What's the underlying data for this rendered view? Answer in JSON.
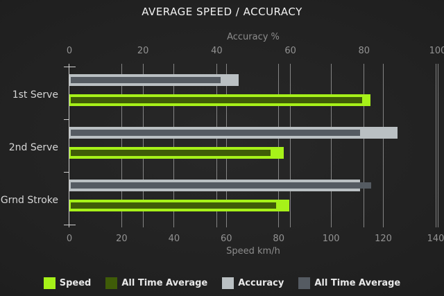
{
  "title": "AVERAGE SPEED / ACCURACY",
  "chart_data": {
    "type": "bar",
    "orientation": "horizontal",
    "title": "AVERAGE SPEED / ACCURACY",
    "categories": [
      "1st Serve",
      "2nd Serve",
      "Grnd Stroke"
    ],
    "axes": {
      "top": {
        "label": "Accuracy %",
        "ticks": [
          0,
          20,
          40,
          60,
          80,
          100
        ],
        "range": [
          0,
          100
        ]
      },
      "bottom": {
        "label": "Speed km/h",
        "ticks": [
          0,
          20,
          40,
          60,
          80,
          100,
          120,
          140
        ],
        "range": [
          0,
          140
        ]
      }
    },
    "series": [
      {
        "name": "Speed",
        "axis": "bottom",
        "color": "#a6f119",
        "role": "outer",
        "values": [
          115,
          82,
          84
        ]
      },
      {
        "name": "All Time Average",
        "axis": "bottom",
        "color": "#3f5c08",
        "role": "inner",
        "values": [
          112,
          77,
          79
        ]
      },
      {
        "name": "Accuracy",
        "axis": "top",
        "color": "#bac0c3",
        "role": "outer",
        "values": [
          46,
          89,
          79
        ]
      },
      {
        "name": "All Time Average",
        "axis": "top",
        "color": "#555b62",
        "role": "inner",
        "values": [
          41,
          79,
          82
        ]
      }
    ],
    "legend": [
      {
        "label": "Speed",
        "color": "#a6f119"
      },
      {
        "label": "All Time Average",
        "color": "#3f5c08"
      },
      {
        "label": "Accuracy",
        "color": "#bac0c3"
      },
      {
        "label": "All Time Average",
        "color": "#555b62"
      }
    ],
    "grid": true,
    "legend_position": "bottom"
  },
  "colors": {
    "title_text": "#f2f2f2",
    "axis_text": "#8d8d8d",
    "category_text": "#d6d6d6",
    "gridline": "#d6d6d6",
    "background_center": "#282828",
    "background_edge": "#131313"
  }
}
